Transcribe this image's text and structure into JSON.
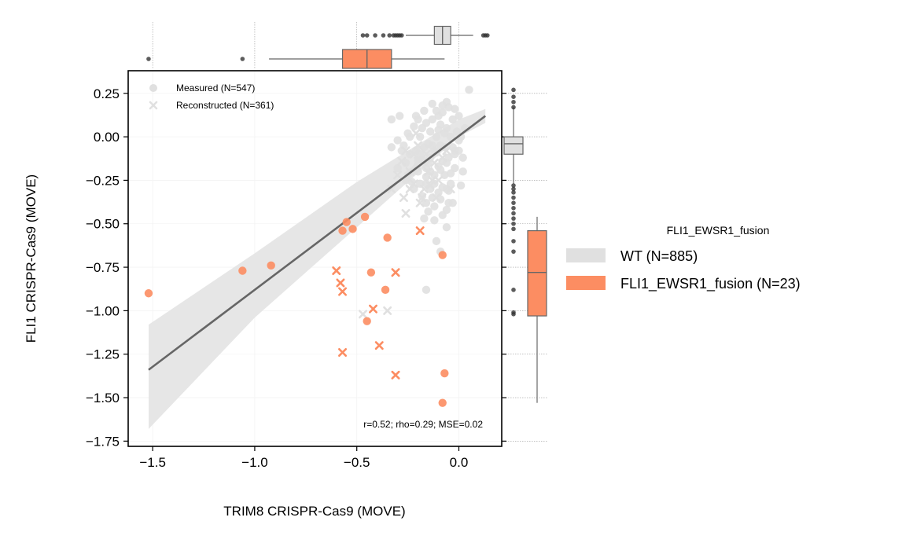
{
  "chart_data": {
    "type": "scatter",
    "xlabel": "TRIM8 CRISPR-Cas9 (MOVE)",
    "ylabel": "FLI1 CRISPR-Cas9 (MOVE)",
    "xlim": [
      -1.62,
      0.21
    ],
    "ylim": [
      -1.78,
      0.38
    ],
    "x_ticks": [
      -1.5,
      -1.0,
      -0.5,
      0.0
    ],
    "x_tick_labels": [
      "−1.5",
      "−1.0",
      "−0.5",
      "0.0"
    ],
    "y_ticks": [
      0.25,
      0.0,
      -0.25,
      -0.5,
      -0.75,
      -1.0,
      -1.25,
      -1.5,
      -1.75
    ],
    "y_tick_labels": [
      "0.25",
      "0.00",
      "−0.25",
      "−0.50",
      "−0.75",
      "−1.00",
      "−1.25",
      "−1.50",
      "−1.75"
    ],
    "grid": true,
    "colors": {
      "wt": "#e0e0e0",
      "fusion": "#fc8d62",
      "regression": "#666666",
      "ci": "#e6e6e6"
    },
    "marker_legend": {
      "placement": "top-left",
      "entries": [
        {
          "marker": "circle",
          "label": "Measured (N=547)"
        },
        {
          "marker": "x",
          "label": "Reconstructed (N=361)"
        }
      ]
    },
    "stats_annotation": "r=0.52; rho=0.29; MSE=0.02",
    "regression": {
      "x_start": -1.52,
      "y_start": -1.34,
      "x_end": 0.13,
      "y_end": 0.12
    },
    "ci_band": {
      "x": [
        -1.52,
        -1.0,
        -0.5,
        0.0,
        0.13
      ],
      "upper": [
        -1.08,
        -0.67,
        -0.26,
        0.1,
        0.16
      ],
      "lower": [
        -1.68,
        -1.04,
        -0.52,
        0.0,
        0.08
      ]
    },
    "series": [
      {
        "name": "WT (N=885)",
        "color": "#e0e0e0",
        "measured": [
          [
            -0.13,
            -0.05
          ],
          [
            -0.1,
            0.12
          ],
          [
            -0.06,
            0.2
          ],
          [
            0.05,
            0.27
          ],
          [
            -0.21,
            -0.08
          ],
          [
            -0.16,
            0.08
          ],
          [
            -0.08,
            -0.14
          ],
          [
            -0.04,
            0.0
          ],
          [
            -0.12,
            -0.22
          ],
          [
            -0.18,
            -0.13
          ],
          [
            -0.02,
            -0.18
          ],
          [
            -0.25,
            0.02
          ],
          [
            -0.06,
            -0.3
          ],
          [
            -0.14,
            0.03
          ],
          [
            0.0,
            -0.08
          ],
          [
            -0.2,
            -0.2
          ],
          [
            -0.09,
            0.07
          ],
          [
            -0.03,
            0.1
          ],
          [
            -0.16,
            -0.27
          ],
          [
            -0.24,
            -0.1
          ],
          [
            -0.11,
            -0.09
          ],
          [
            -0.07,
            -0.22
          ],
          [
            0.02,
            -0.12
          ],
          [
            -0.15,
            -0.04
          ],
          [
            -0.27,
            -0.05
          ],
          [
            -0.19,
            0.0
          ],
          [
            -0.12,
            -0.4
          ],
          [
            -0.05,
            -0.38
          ],
          [
            -0.1,
            -0.32
          ],
          [
            -0.22,
            -0.3
          ],
          [
            -0.15,
            -0.43
          ],
          [
            -0.08,
            -0.45
          ],
          [
            -0.03,
            -0.38
          ],
          [
            0.01,
            -0.28
          ],
          [
            -0.01,
            0.03
          ],
          [
            -0.29,
            0.12
          ],
          [
            -0.33,
            -0.06
          ],
          [
            -0.06,
            0.05
          ],
          [
            -0.09,
            -0.05
          ],
          [
            -0.17,
            0.15
          ],
          [
            -0.13,
            0.19
          ],
          [
            -0.02,
            0.16
          ],
          [
            0.03,
            0.05
          ],
          [
            -0.26,
            -0.15
          ],
          [
            -0.23,
            -0.26
          ],
          [
            -0.18,
            -0.34
          ],
          [
            -0.14,
            -0.12
          ],
          [
            -0.05,
            -0.12
          ],
          [
            -0.08,
            0.14
          ],
          [
            -0.2,
            0.1
          ],
          [
            -0.3,
            -0.18
          ],
          [
            -0.11,
            0.0
          ],
          [
            -0.04,
            -0.27
          ],
          [
            0.0,
            0.12
          ],
          [
            -0.16,
            -0.18
          ],
          [
            -0.25,
            -0.22
          ],
          [
            -0.13,
            0.1
          ],
          [
            -0.07,
            -0.06
          ],
          [
            -0.22,
            0.06
          ],
          [
            -0.1,
            -0.17
          ],
          [
            -0.06,
            -0.52
          ],
          [
            -0.11,
            -0.6
          ],
          [
            -0.16,
            -0.88
          ],
          [
            -0.09,
            -0.66
          ],
          [
            -0.17,
            -0.47
          ],
          [
            -0.12,
            -0.48
          ],
          [
            -0.16,
            -0.38
          ],
          [
            -0.06,
            -0.42
          ],
          [
            -0.33,
            0.1
          ],
          [
            -0.02,
            -0.08
          ],
          [
            -0.05,
            0.17
          ],
          [
            -0.14,
            -0.3
          ],
          [
            -0.19,
            -0.1
          ],
          [
            -0.28,
            -0.08
          ],
          [
            -0.08,
            -0.29
          ],
          [
            0.02,
            -0.2
          ],
          [
            -0.24,
            0.0
          ],
          [
            -0.21,
            -0.18
          ],
          [
            -0.12,
            -0.08
          ],
          [
            -0.03,
            -0.06
          ],
          [
            -0.18,
            0.05
          ],
          [
            -0.1,
            0.04
          ],
          [
            -0.15,
            -0.15
          ],
          [
            -0.07,
            0.02
          ],
          [
            0.0,
            -0.02
          ],
          [
            -0.26,
            -0.25
          ],
          [
            -0.13,
            -0.35
          ],
          [
            -0.21,
            0.12
          ],
          [
            -0.04,
            -0.21
          ],
          [
            -0.17,
            -0.06
          ],
          [
            -0.09,
            -0.36
          ],
          [
            -0.11,
            0.15
          ],
          [
            -0.08,
            0.18
          ],
          [
            -0.06,
            -0.15
          ],
          [
            -0.14,
            -0.2
          ],
          [
            -0.3,
            -0.02
          ],
          [
            -0.2,
            -0.14
          ],
          [
            -0.16,
            -0.23
          ],
          [
            0.01,
            0.0
          ],
          [
            -0.12,
            -0.27
          ],
          [
            -0.05,
            -0.31
          ],
          [
            -0.23,
            -0.2
          ],
          [
            -0.19,
            -0.27
          ],
          [
            -0.09,
            -0.19
          ],
          [
            -0.02,
            -0.1
          ]
        ],
        "reconstructed": [
          [
            -0.24,
            -0.2
          ],
          [
            -0.22,
            -0.27
          ],
          [
            -0.15,
            -0.2
          ],
          [
            -0.26,
            -0.44
          ],
          [
            -0.2,
            -0.14
          ],
          [
            -0.1,
            -0.25
          ],
          [
            -0.18,
            -0.35
          ],
          [
            -0.28,
            -0.14
          ],
          [
            -0.2,
            -0.05
          ],
          [
            -0.12,
            -0.15
          ],
          [
            -0.24,
            -0.3
          ],
          [
            -0.14,
            -0.28
          ],
          [
            -0.22,
            -0.1
          ],
          [
            -0.17,
            -0.3
          ],
          [
            -0.3,
            -0.22
          ],
          [
            -0.26,
            -0.08
          ],
          [
            -0.08,
            -0.12
          ],
          [
            -0.13,
            -0.25
          ],
          [
            -0.19,
            -0.38
          ],
          [
            -0.04,
            -0.3
          ],
          [
            -0.21,
            0.02
          ],
          [
            -0.16,
            -0.1
          ],
          [
            -0.35,
            -1.0
          ],
          [
            -0.47,
            -1.02
          ],
          [
            -0.33,
            -0.3
          ],
          [
            -0.11,
            -0.35
          ],
          [
            -0.27,
            -0.35
          ],
          [
            -0.06,
            -0.08
          ]
        ]
      },
      {
        "name": "FLI1_EWSR1_fusion (N=23)",
        "color": "#fc8d62",
        "measured": [
          [
            -1.52,
            -0.9
          ],
          [
            -1.06,
            -0.77
          ],
          [
            -0.92,
            -0.74
          ],
          [
            -0.46,
            -0.46
          ],
          [
            -0.52,
            -0.53
          ],
          [
            -0.57,
            -0.54
          ],
          [
            -0.55,
            -0.49
          ],
          [
            -0.35,
            -0.58
          ],
          [
            -0.43,
            -0.78
          ],
          [
            -0.36,
            -0.88
          ],
          [
            -0.45,
            -1.06
          ],
          [
            -0.08,
            -0.68
          ],
          [
            -0.08,
            -1.53
          ],
          [
            -0.07,
            -1.36
          ]
        ],
        "reconstructed": [
          [
            -0.6,
            -0.77
          ],
          [
            -0.58,
            -0.84
          ],
          [
            -0.57,
            -0.89
          ],
          [
            -0.42,
            -0.99
          ],
          [
            -0.31,
            -0.78
          ],
          [
            -0.19,
            -0.54
          ],
          [
            -0.39,
            -1.2
          ],
          [
            -0.57,
            -1.24
          ],
          [
            -0.31,
            -1.37
          ]
        ]
      }
    ],
    "marginal_top": [
      {
        "group": "WT (N=885)",
        "q1": -0.12,
        "median": -0.08,
        "q3": -0.04,
        "whisker_low": -0.26,
        "whisker_high": 0.07,
        "outliers": [
          -0.47,
          -0.45,
          -0.41,
          -0.37,
          -0.34,
          -0.32,
          -0.31,
          -0.3,
          -0.29,
          -0.28,
          0.12,
          0.13,
          0.14
        ]
      },
      {
        "group": "FLI1_EWSR1_fusion (N=23)",
        "q1": -0.57,
        "median": -0.45,
        "q3": -0.33,
        "whisker_low": -0.93,
        "whisker_high": -0.07,
        "outliers": [
          -1.52,
          -1.06
        ]
      }
    ],
    "marginal_right": [
      {
        "group": "WT (N=885)",
        "q1": -0.1,
        "median": -0.04,
        "q3": 0.0,
        "whisker_low": -0.27,
        "whisker_high": 0.17,
        "outliers": [
          0.27,
          0.23,
          0.2,
          0.17,
          -0.28,
          -0.3,
          -0.32,
          -0.35,
          -0.38,
          -0.41,
          -0.44,
          -0.47,
          -0.5,
          -0.53,
          -0.6,
          -0.66,
          -0.88,
          -1.01,
          -1.02
        ]
      },
      {
        "group": "FLI1_EWSR1_fusion (N=23)",
        "q1": -1.03,
        "median": -0.78,
        "q3": -0.54,
        "whisker_low": -1.53,
        "whisker_high": -0.46,
        "outliers": []
      }
    ],
    "legend": {
      "title": "FLI1_EWSR1_fusion",
      "placement": "right",
      "entries": [
        {
          "label": "WT (N=885)",
          "color": "#e0e0e0"
        },
        {
          "label": "FLI1_EWSR1_fusion (N=23)",
          "color": "#fc8d62"
        }
      ]
    }
  }
}
